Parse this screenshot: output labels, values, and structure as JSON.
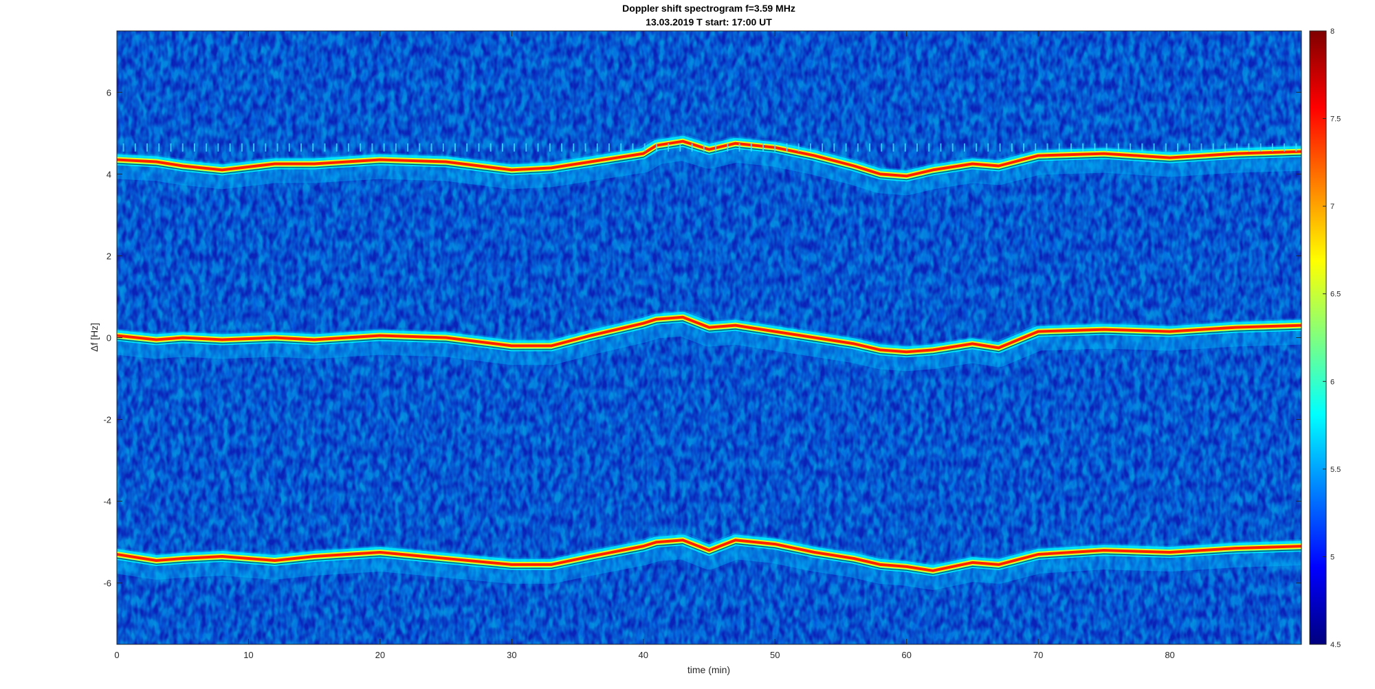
{
  "chart_data": {
    "type": "heatmap",
    "title": "Doppler shift spectrogram f=3.59 MHz",
    "subtitle": "13.03.2019   T start: 17:00 UT",
    "xlabel": "time (min)",
    "ylabel": "Δf [Hz]",
    "xlim": [
      0,
      90
    ],
    "ylim": [
      -7.5,
      7.5
    ],
    "xticks": [
      0,
      10,
      20,
      30,
      40,
      50,
      60,
      70,
      80
    ],
    "yticks": [
      -6,
      -4,
      -2,
      0,
      2,
      4,
      6
    ],
    "colorbar": {
      "range": [
        4.5,
        8
      ],
      "ticks": [
        4.5,
        5,
        5.5,
        6,
        6.5,
        7,
        7.5,
        8
      ],
      "colormap": "jet"
    },
    "traces": [
      {
        "band": "upper",
        "x": [
          0,
          3,
          5,
          8,
          12,
          15,
          20,
          25,
          30,
          33,
          36,
          40,
          41,
          43,
          45,
          47,
          50,
          53,
          56,
          58,
          60,
          62,
          65,
          67,
          70,
          75,
          80,
          85,
          90
        ],
        "y": [
          4.35,
          4.3,
          4.2,
          4.1,
          4.25,
          4.25,
          4.35,
          4.3,
          4.1,
          4.15,
          4.3,
          4.5,
          4.7,
          4.8,
          4.6,
          4.75,
          4.65,
          4.45,
          4.2,
          4.0,
          3.95,
          4.1,
          4.25,
          4.2,
          4.45,
          4.5,
          4.4,
          4.5,
          4.55
        ]
      },
      {
        "band": "middle",
        "x": [
          0,
          3,
          5,
          8,
          12,
          15,
          20,
          25,
          30,
          33,
          36,
          40,
          41,
          43,
          45,
          47,
          50,
          53,
          56,
          58,
          60,
          62,
          65,
          67,
          70,
          75,
          80,
          85,
          90
        ],
        "y": [
          0.05,
          -0.05,
          0.0,
          -0.05,
          0.0,
          -0.05,
          0.05,
          0.0,
          -0.2,
          -0.2,
          0.05,
          0.35,
          0.45,
          0.5,
          0.25,
          0.3,
          0.15,
          0.0,
          -0.15,
          -0.3,
          -0.35,
          -0.3,
          -0.15,
          -0.25,
          0.15,
          0.2,
          0.15,
          0.25,
          0.3
        ]
      },
      {
        "band": "lower",
        "x": [
          0,
          3,
          5,
          8,
          12,
          15,
          20,
          25,
          30,
          33,
          36,
          40,
          41,
          43,
          45,
          47,
          50,
          53,
          56,
          58,
          60,
          62,
          65,
          67,
          70,
          75,
          80,
          85,
          90
        ],
        "y": [
          -5.3,
          -5.45,
          -5.4,
          -5.35,
          -5.45,
          -5.35,
          -5.25,
          -5.4,
          -5.55,
          -5.55,
          -5.35,
          -5.1,
          -5.0,
          -4.95,
          -5.2,
          -4.95,
          -5.05,
          -5.25,
          -5.4,
          -5.55,
          -5.6,
          -5.7,
          -5.5,
          -5.55,
          -5.3,
          -5.2,
          -5.25,
          -5.15,
          -5.1
        ]
      }
    ]
  }
}
